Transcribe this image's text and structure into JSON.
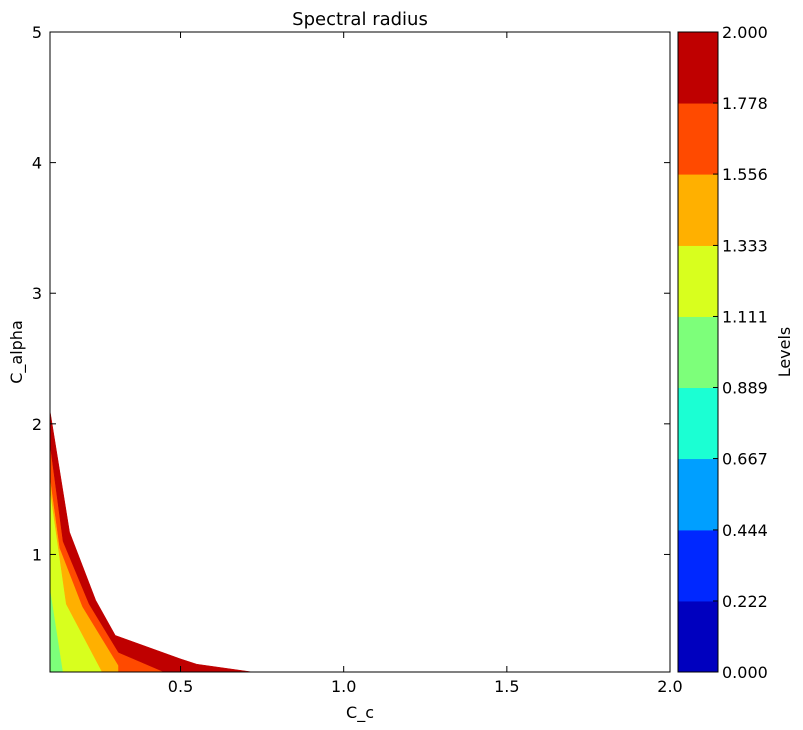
{
  "chart_data": {
    "type": "filled-contour",
    "title": "Spectral radius",
    "xlabel": "C_c",
    "ylabel": "C_alpha",
    "xlim": [
      0.1,
      2.0
    ],
    "ylim": [
      0.1,
      5.0
    ],
    "xticks": [
      0.5,
      1.0,
      1.5,
      2.0
    ],
    "xtick_labels": [
      "0.5",
      "1.0",
      "1.5",
      "2.0"
    ],
    "yticks": [
      1,
      2,
      3,
      4,
      5
    ],
    "ytick_labels": [
      "1",
      "2",
      "3",
      "4",
      "5"
    ],
    "grid": false,
    "colorbar": {
      "label": "Levels",
      "levels": [
        0.0,
        0.222,
        0.444,
        0.667,
        0.889,
        1.111,
        1.333,
        1.556,
        1.778,
        2.0
      ],
      "tick_labels": [
        "0.000",
        "0.222",
        "0.444",
        "0.667",
        "0.889",
        "1.111",
        "1.333",
        "1.556",
        "1.778",
        "2.000"
      ],
      "colors": [
        "#0000bf",
        "#0028ff",
        "#009fff",
        "#1bffd3",
        "#7dff7a",
        "#d8ff1e",
        "#ffb000",
        "#ff4a00",
        "#bf0000"
      ]
    },
    "contour_bands": [
      {
        "range": [
          0.889,
          1.111
        ],
        "color": "#7dff7a",
        "polygon": [
          [
            0.1,
            0.1
          ],
          [
            0.14,
            0.1
          ],
          [
            0.1,
            0.75
          ]
        ]
      },
      {
        "range": [
          1.111,
          1.333
        ],
        "color": "#d8ff1e",
        "polygon": [
          [
            0.14,
            0.1
          ],
          [
            0.26,
            0.1
          ],
          [
            0.15,
            0.62
          ],
          [
            0.1,
            1.5
          ],
          [
            0.1,
            0.75
          ]
        ]
      },
      {
        "range": [
          1.333,
          1.556
        ],
        "color": "#ffb000",
        "polygon": [
          [
            0.26,
            0.1
          ],
          [
            0.31,
            0.1
          ],
          [
            0.31,
            0.15
          ],
          [
            0.2,
            0.6
          ],
          [
            0.13,
            1.05
          ],
          [
            0.1,
            1.6
          ],
          [
            0.1,
            1.5
          ],
          [
            0.15,
            0.62
          ]
        ]
      },
      {
        "range": [
          1.556,
          1.778
        ],
        "color": "#ff4a00",
        "polygon": [
          [
            0.31,
            0.1
          ],
          [
            0.45,
            0.1
          ],
          [
            0.31,
            0.25
          ],
          [
            0.22,
            0.62
          ],
          [
            0.14,
            1.1
          ],
          [
            0.1,
            1.85
          ],
          [
            0.1,
            1.6
          ],
          [
            0.13,
            1.05
          ],
          [
            0.2,
            0.6
          ],
          [
            0.31,
            0.15
          ]
        ]
      },
      {
        "range": [
          1.778,
          2.0
        ],
        "color": "#bf0000",
        "polygon": [
          [
            0.45,
            0.1
          ],
          [
            0.72,
            0.1
          ],
          [
            0.55,
            0.16
          ],
          [
            0.5,
            0.2
          ],
          [
            0.3,
            0.38
          ],
          [
            0.24,
            0.65
          ],
          [
            0.16,
            1.17
          ],
          [
            0.1,
            2.1
          ],
          [
            0.1,
            1.85
          ],
          [
            0.14,
            1.1
          ],
          [
            0.22,
            0.62
          ],
          [
            0.31,
            0.25
          ]
        ]
      }
    ]
  }
}
